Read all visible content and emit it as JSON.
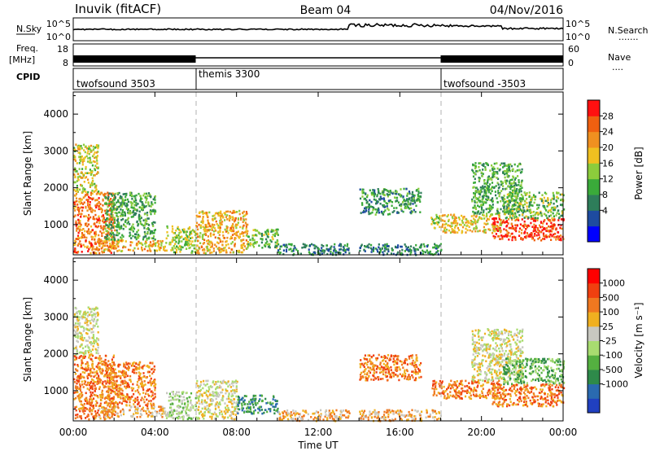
{
  "header": {
    "station": "Inuvik (fitACF)",
    "beam": "Beam 04",
    "date": "04/Nov/2016"
  },
  "summary_panels": {
    "nsky": {
      "label": "N.Sky",
      "ticks": [
        "10^5",
        "10^0"
      ],
      "right_ticks": [
        "10^5",
        "10^0"
      ],
      "right_label": "N.Search",
      "right_dots": "......."
    },
    "freq": {
      "label_line1": "Freq.",
      "label_line2": "[MHz]",
      "ticks": [
        "18",
        "8"
      ],
      "right_ticks": [
        "60",
        "0"
      ],
      "right_label": "Nave",
      "right_dots": "...."
    },
    "cpid": {
      "label": "CPID",
      "segments": [
        {
          "name": "twofsound 3503",
          "start": 0,
          "end": 6
        },
        {
          "name": "themis 3300",
          "start": 6,
          "end": 18
        },
        {
          "name": "twofsound -3503",
          "start": 18,
          "end": 24
        }
      ]
    }
  },
  "x_axis": {
    "title": "Time UT",
    "ticks": [
      "00:00",
      "04:00",
      "08:00",
      "12:00",
      "16:00",
      "20:00",
      "00:00"
    ],
    "range_hours": [
      0,
      24
    ]
  },
  "chart_data": [
    {
      "type": "heatmap",
      "name": "power",
      "ylabel": "Slant Range [km]",
      "yticks": [
        "1000",
        "2000",
        "3000",
        "4000"
      ],
      "ylim": [
        180,
        4600
      ],
      "colorbar": {
        "title": "Power [dB]",
        "labels": [
          "28",
          "24",
          "20",
          "16",
          "12",
          "8",
          "4"
        ],
        "colors": [
          "#0000ff",
          "#1e4ba0",
          "#2e7d5a",
          "#3aaa3a",
          "#8ccc3c",
          "#f0c020",
          "#f09020",
          "#f06010",
          "#ff1010"
        ]
      },
      "scatter_regions": [
        {
          "t": [
            0.0,
            2.0
          ],
          "r": [
            250,
            1900
          ],
          "level": 6.5
        },
        {
          "t": [
            0.0,
            1.2
          ],
          "r": [
            1900,
            3200
          ],
          "level": 4.5
        },
        {
          "t": [
            1.2,
            4.5
          ],
          "r": [
            300,
            600
          ],
          "level": 5.5
        },
        {
          "t": [
            1.5,
            4.0
          ],
          "r": [
            600,
            1900
          ],
          "level": 3
        },
        {
          "t": [
            4.5,
            6.0
          ],
          "r": [
            250,
            1000
          ],
          "level": 4
        },
        {
          "t": [
            6.0,
            8.5
          ],
          "r": [
            250,
            1400
          ],
          "level": 5.5
        },
        {
          "t": [
            8.5,
            10.0
          ],
          "r": [
            400,
            900
          ],
          "level": 3.5
        },
        {
          "t": [
            10.0,
            13.5
          ],
          "r": [
            200,
            500
          ],
          "level": 2
        },
        {
          "t": [
            14.0,
            17.0
          ],
          "r": [
            1300,
            2000
          ],
          "level": 2.5
        },
        {
          "t": [
            14.0,
            18.0
          ],
          "r": [
            200,
            500
          ],
          "level": 2
        },
        {
          "t": [
            17.5,
            18.0
          ],
          "r": [
            900,
            1300
          ],
          "level": 4
        },
        {
          "t": [
            18.0,
            21.0
          ],
          "r": [
            800,
            1300
          ],
          "level": 5
        },
        {
          "t": [
            19.5,
            22.0
          ],
          "r": [
            1300,
            2700
          ],
          "level": 3
        },
        {
          "t": [
            20.5,
            24.0
          ],
          "r": [
            600,
            1200
          ],
          "level": 7.5
        },
        {
          "t": [
            21.0,
            24.0
          ],
          "r": [
            1200,
            1900
          ],
          "level": 3.5
        }
      ]
    },
    {
      "type": "heatmap",
      "name": "velocity",
      "ylabel": "Slant Range [km]",
      "yticks": [
        "1000",
        "2000",
        "3000",
        "4000"
      ],
      "ylim": [
        180,
        4600
      ],
      "colorbar": {
        "title": "Velocity [m s⁻¹]",
        "labels": [
          "1000",
          "500",
          "100",
          "25",
          "-25",
          "-100",
          "-500",
          "-1000"
        ],
        "colors": [
          "#2040c0",
          "#2a6ab0",
          "#2e8a4a",
          "#54b040",
          "#a8dc70",
          "#c8c8c0",
          "#f0b020",
          "#f07820",
          "#f04010",
          "#ff0000"
        ]
      },
      "scatter_regions": [
        {
          "t": [
            0.0,
            2.0
          ],
          "r": [
            250,
            2000
          ],
          "level": 7
        },
        {
          "t": [
            0.0,
            1.2
          ],
          "r": [
            2000,
            3300
          ],
          "level": 5
        },
        {
          "t": [
            1.2,
            4.5
          ],
          "r": [
            300,
            600
          ],
          "level": 6
        },
        {
          "t": [
            1.5,
            4.0
          ],
          "r": [
            600,
            1800
          ],
          "level": 7
        },
        {
          "t": [
            4.5,
            6.0
          ],
          "r": [
            250,
            1000
          ],
          "level": 4
        },
        {
          "t": [
            6.0,
            8.0
          ],
          "r": [
            250,
            1300
          ],
          "level": 5
        },
        {
          "t": [
            8.0,
            10.0
          ],
          "r": [
            400,
            900
          ],
          "level": 2
        },
        {
          "t": [
            10.0,
            13.5
          ],
          "r": [
            200,
            500
          ],
          "level": 6
        },
        {
          "t": [
            14.0,
            17.0
          ],
          "r": [
            1300,
            2000
          ],
          "level": 7
        },
        {
          "t": [
            14.0,
            18.0
          ],
          "r": [
            200,
            500
          ],
          "level": 6
        },
        {
          "t": [
            17.5,
            18.0
          ],
          "r": [
            900,
            1300
          ],
          "level": 7
        },
        {
          "t": [
            18.0,
            21.0
          ],
          "r": [
            800,
            1300
          ],
          "level": 7
        },
        {
          "t": [
            19.5,
            22.0
          ],
          "r": [
            1300,
            2700
          ],
          "level": 5
        },
        {
          "t": [
            20.5,
            24.0
          ],
          "r": [
            600,
            1200
          ],
          "level": 7
        },
        {
          "t": [
            21.0,
            24.0
          ],
          "r": [
            1200,
            1900
          ],
          "level": 3
        }
      ]
    }
  ]
}
